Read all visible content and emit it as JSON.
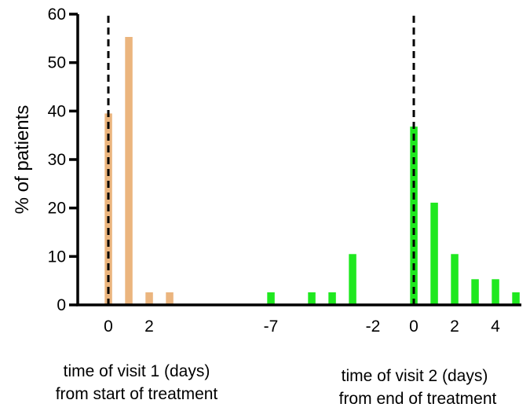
{
  "chart_data": {
    "type": "bar",
    "ylabel": "% of patients",
    "ylim": [
      0,
      60
    ],
    "yticks": [
      0,
      10,
      20,
      30,
      40,
      50,
      60
    ],
    "grid": false,
    "groups": [
      {
        "label_line1": "time of visit 1 (days)",
        "label_line2": "from start of treatment",
        "color": "#EBB57E",
        "x": [
          0,
          1,
          2,
          3
        ],
        "values": [
          39.5,
          55.3,
          2.6,
          2.6
        ],
        "xtick_labels": [
          "0",
          "2"
        ],
        "xtick_positions": [
          0,
          2
        ],
        "reference_line_x": 0
      },
      {
        "label_line1": "time of visit 2 (days)",
        "label_line2": "from end  of treatment",
        "color": "#1FE81F",
        "x": [
          -7,
          -5,
          -4,
          -3,
          0,
          1,
          2,
          3,
          4,
          5
        ],
        "values": [
          2.6,
          2.6,
          2.6,
          10.5,
          36.8,
          21.1,
          10.5,
          5.3,
          5.3,
          2.6
        ],
        "xtick_labels": [
          "-7",
          "-2",
          "0",
          "2",
          "4"
        ],
        "xtick_positions": [
          -7,
          -2,
          0,
          2,
          4
        ],
        "reference_line_x": 0
      }
    ]
  }
}
